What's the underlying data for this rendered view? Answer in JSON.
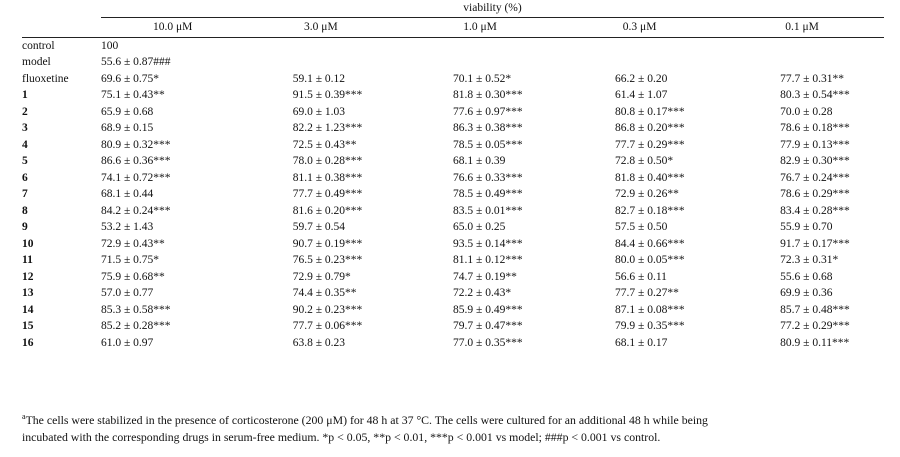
{
  "table": {
    "group_header": "viability (%)",
    "columns": [
      "10.0 μM",
      "3.0 μM",
      "1.0 μM",
      "0.3 μM",
      "0.1 μM"
    ],
    "rows": [
      {
        "label": "control",
        "bold": false,
        "values": [
          "100",
          "",
          "",
          "",
          ""
        ]
      },
      {
        "label": "model",
        "bold": false,
        "values": [
          "55.6 ± 0.87###",
          "",
          "",
          "",
          ""
        ]
      },
      {
        "label": "fluoxetine",
        "bold": false,
        "values": [
          "69.6 ± 0.75*",
          "59.1 ± 0.12",
          "70.1 ± 0.52*",
          "66.2 ± 0.20",
          "77.7 ± 0.31**"
        ]
      },
      {
        "label": "1",
        "bold": true,
        "values": [
          "75.1 ± 0.43**",
          "91.5 ± 0.39***",
          "81.8 ± 0.30***",
          "61.4 ± 1.07",
          "80.3 ± 0.54***"
        ]
      },
      {
        "label": "2",
        "bold": true,
        "values": [
          "65.9 ± 0.68",
          "69.0 ± 1.03",
          "77.6 ± 0.97***",
          "80.8 ± 0.17***",
          "70.0 ± 0.28"
        ]
      },
      {
        "label": "3",
        "bold": true,
        "values": [
          "68.9 ± 0.15",
          "82.2 ± 1.23***",
          "86.3 ± 0.38***",
          "86.8 ± 0.20***",
          "78.6 ± 0.18***"
        ]
      },
      {
        "label": "4",
        "bold": true,
        "values": [
          "80.9 ± 0.32***",
          "72.5 ± 0.43**",
          "78.5 ± 0.05***",
          "77.7 ± 0.29***",
          "77.9 ± 0.13***"
        ]
      },
      {
        "label": "5",
        "bold": true,
        "values": [
          "86.6 ± 0.36***",
          "78.0 ± 0.28***",
          "68.1 ± 0.39",
          "72.8 ± 0.50*",
          "82.9 ± 0.30***"
        ]
      },
      {
        "label": "6",
        "bold": true,
        "values": [
          "74.1 ± 0.72***",
          "81.1 ± 0.38***",
          "76.6 ± 0.33***",
          "81.8 ± 0.40***",
          "76.7 ± 0.24***"
        ]
      },
      {
        "label": "7",
        "bold": true,
        "values": [
          "68.1 ± 0.44",
          "77.7 ± 0.49***",
          "78.5 ± 0.49***",
          "72.9 ± 0.26**",
          "78.6 ± 0.29***"
        ]
      },
      {
        "label": "8",
        "bold": true,
        "values": [
          "84.2 ± 0.24***",
          "81.6 ± 0.20***",
          "83.5 ± 0.01***",
          "82.7 ± 0.18***",
          "83.4 ± 0.28***"
        ]
      },
      {
        "label": "9",
        "bold": true,
        "values": [
          "53.2 ± 1.43",
          "59.7 ± 0.54",
          "65.0 ± 0.25",
          "57.5 ± 0.50",
          "55.9 ± 0.70"
        ]
      },
      {
        "label": "10",
        "bold": true,
        "values": [
          "72.9 ± 0.43**",
          "90.7 ± 0.19***",
          "93.5 ± 0.14***",
          "84.4 ± 0.66***",
          "91.7 ± 0.17***"
        ]
      },
      {
        "label": "11",
        "bold": true,
        "values": [
          "71.5 ± 0.75*",
          "76.5 ± 0.23***",
          "81.1 ± 0.12***",
          "80.0 ± 0.05***",
          "72.3 ± 0.31*"
        ]
      },
      {
        "label": "12",
        "bold": true,
        "values": [
          "75.9 ± 0.68**",
          "72.9 ± 0.79*",
          "74.7 ± 0.19**",
          "56.6 ± 0.11",
          "55.6 ± 0.68"
        ]
      },
      {
        "label": "13",
        "bold": true,
        "values": [
          "57.0 ± 0.77",
          "74.4 ± 0.35**",
          "72.2 ± 0.43*",
          "77.7 ± 0.27**",
          "69.9 ± 0.36"
        ]
      },
      {
        "label": "14",
        "bold": true,
        "values": [
          "85.3 ± 0.58***",
          "90.2 ± 0.23***",
          "85.9 ± 0.49***",
          "87.1 ± 0.08***",
          "85.7 ± 0.48***"
        ]
      },
      {
        "label": "15",
        "bold": true,
        "values": [
          "85.2 ± 0.28***",
          "77.7 ± 0.06***",
          "79.7 ± 0.47***",
          "79.9 ± 0.35***",
          "77.2 ± 0.29***"
        ]
      },
      {
        "label": "16",
        "bold": true,
        "values": [
          "61.0 ± 0.97",
          "63.8 ± 0.23",
          "77.0 ± 0.35***",
          "68.1 ± 0.17",
          "80.9 ± 0.11***"
        ]
      }
    ]
  },
  "footnote": {
    "marker": "a",
    "text_line1": "The cells were stabilized in the presence of corticosterone (200 μM) for 48 h at 37 °C. The cells were cultured for an additional 48 h while being",
    "text_line2": "incubated with the corresponding drugs in serum-free medium. *p < 0.05, **p < 0.01, ***p < 0.001 vs model; ###p < 0.001 vs control."
  }
}
